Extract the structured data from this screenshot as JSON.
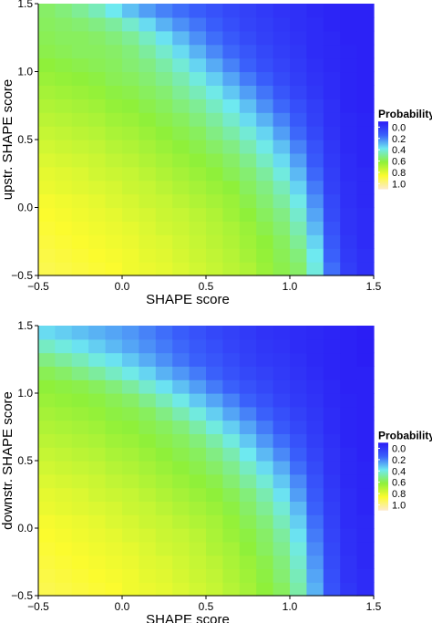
{
  "colors": {
    "background": "#ffffff",
    "axis": "#000000",
    "text": "#000000",
    "colorscale": [
      {
        "value": 0.0,
        "color": "#2a1bf5"
      },
      {
        "value": 0.2,
        "color": "#3a60fb"
      },
      {
        "value": 0.4,
        "color": "#6ee9f0"
      },
      {
        "value": 0.6,
        "color": "#8ff03a"
      },
      {
        "value": 0.8,
        "color": "#fbfb2e"
      },
      {
        "value": 1.0,
        "color": "#fdebcf"
      }
    ]
  },
  "chart_data": [
    {
      "type": "heatmap",
      "xlabel": "SHAPE score",
      "ylabel": "upstr. SHAPE score",
      "xlim": [
        -0.5,
        1.5
      ],
      "ylim": [
        -0.5,
        1.5
      ],
      "xticks": [
        -0.5,
        0.0,
        0.5,
        1.0,
        1.5
      ],
      "xtick_labels": [
        "−0.5",
        "0.0",
        "0.5",
        "1.0",
        "1.5"
      ],
      "yticks": [
        -0.5,
        0.0,
        0.5,
        1.0,
        1.5
      ],
      "ytick_labels": [
        "−0.5",
        "0.0",
        "0.5",
        "1.0",
        "1.5"
      ],
      "grid": false,
      "n_cells": 20,
      "legend": {
        "title": "Probability",
        "labels": [
          "0.0",
          "0.2",
          "0.4",
          "0.6",
          "0.8",
          "1.0"
        ],
        "placement": "right"
      },
      "z": [
        [
          0.84,
          0.83,
          0.82,
          0.81,
          0.8,
          0.78,
          0.77,
          0.76,
          0.74,
          0.72,
          0.7,
          0.68,
          0.66,
          0.62,
          0.58,
          0.55,
          0.42,
          0.22,
          0.1,
          0.06
        ],
        [
          0.83,
          0.82,
          0.81,
          0.8,
          0.79,
          0.78,
          0.76,
          0.75,
          0.73,
          0.71,
          0.69,
          0.67,
          0.64,
          0.61,
          0.57,
          0.53,
          0.4,
          0.2,
          0.09,
          0.06
        ],
        [
          0.82,
          0.81,
          0.8,
          0.79,
          0.78,
          0.77,
          0.75,
          0.74,
          0.72,
          0.7,
          0.68,
          0.66,
          0.63,
          0.6,
          0.56,
          0.5,
          0.37,
          0.18,
          0.08,
          0.05
        ],
        [
          0.81,
          0.8,
          0.79,
          0.78,
          0.77,
          0.76,
          0.74,
          0.72,
          0.71,
          0.69,
          0.67,
          0.65,
          0.62,
          0.58,
          0.54,
          0.47,
          0.33,
          0.16,
          0.07,
          0.05
        ],
        [
          0.8,
          0.79,
          0.78,
          0.77,
          0.76,
          0.74,
          0.73,
          0.71,
          0.7,
          0.68,
          0.66,
          0.63,
          0.6,
          0.56,
          0.52,
          0.44,
          0.3,
          0.14,
          0.07,
          0.05
        ],
        [
          0.79,
          0.78,
          0.77,
          0.76,
          0.74,
          0.73,
          0.71,
          0.7,
          0.68,
          0.66,
          0.64,
          0.62,
          0.58,
          0.54,
          0.49,
          0.41,
          0.27,
          0.13,
          0.06,
          0.04
        ],
        [
          0.77,
          0.76,
          0.75,
          0.74,
          0.73,
          0.71,
          0.7,
          0.68,
          0.66,
          0.64,
          0.62,
          0.6,
          0.56,
          0.52,
          0.46,
          0.37,
          0.24,
          0.11,
          0.06,
          0.04
        ],
        [
          0.76,
          0.75,
          0.74,
          0.72,
          0.71,
          0.7,
          0.68,
          0.66,
          0.64,
          0.62,
          0.6,
          0.57,
          0.54,
          0.49,
          0.42,
          0.33,
          0.21,
          0.1,
          0.05,
          0.04
        ],
        [
          0.74,
          0.73,
          0.72,
          0.71,
          0.69,
          0.68,
          0.66,
          0.64,
          0.62,
          0.6,
          0.58,
          0.55,
          0.51,
          0.45,
          0.38,
          0.29,
          0.18,
          0.09,
          0.05,
          0.03
        ],
        [
          0.72,
          0.71,
          0.7,
          0.69,
          0.67,
          0.66,
          0.64,
          0.62,
          0.6,
          0.58,
          0.55,
          0.52,
          0.47,
          0.41,
          0.34,
          0.25,
          0.16,
          0.08,
          0.04,
          0.03
        ],
        [
          0.7,
          0.69,
          0.68,
          0.67,
          0.65,
          0.64,
          0.62,
          0.6,
          0.58,
          0.56,
          0.52,
          0.48,
          0.43,
          0.37,
          0.29,
          0.21,
          0.13,
          0.07,
          0.04,
          0.03
        ],
        [
          0.68,
          0.67,
          0.66,
          0.65,
          0.63,
          0.62,
          0.6,
          0.58,
          0.56,
          0.53,
          0.49,
          0.44,
          0.38,
          0.32,
          0.25,
          0.18,
          0.11,
          0.06,
          0.04,
          0.03
        ],
        [
          0.66,
          0.65,
          0.64,
          0.63,
          0.61,
          0.6,
          0.58,
          0.56,
          0.53,
          0.5,
          0.45,
          0.4,
          0.34,
          0.27,
          0.21,
          0.15,
          0.1,
          0.06,
          0.03,
          0.02
        ],
        [
          0.64,
          0.63,
          0.62,
          0.61,
          0.59,
          0.58,
          0.56,
          0.54,
          0.5,
          0.46,
          0.41,
          0.35,
          0.29,
          0.23,
          0.17,
          0.12,
          0.08,
          0.05,
          0.03,
          0.02
        ],
        [
          0.62,
          0.61,
          0.6,
          0.59,
          0.57,
          0.56,
          0.54,
          0.51,
          0.47,
          0.42,
          0.36,
          0.3,
          0.24,
          0.19,
          0.14,
          0.1,
          0.07,
          0.05,
          0.03,
          0.02
        ],
        [
          0.6,
          0.59,
          0.58,
          0.57,
          0.56,
          0.54,
          0.52,
          0.48,
          0.43,
          0.37,
          0.31,
          0.25,
          0.2,
          0.15,
          0.12,
          0.09,
          0.06,
          0.04,
          0.03,
          0.02
        ],
        [
          0.58,
          0.57,
          0.56,
          0.56,
          0.55,
          0.53,
          0.49,
          0.44,
          0.38,
          0.32,
          0.26,
          0.21,
          0.17,
          0.13,
          0.1,
          0.08,
          0.05,
          0.04,
          0.03,
          0.02
        ],
        [
          0.57,
          0.56,
          0.56,
          0.55,
          0.53,
          0.5,
          0.45,
          0.39,
          0.33,
          0.27,
          0.22,
          0.18,
          0.14,
          0.11,
          0.09,
          0.07,
          0.05,
          0.04,
          0.02,
          0.02
        ],
        [
          0.56,
          0.55,
          0.54,
          0.52,
          0.49,
          0.44,
          0.38,
          0.32,
          0.27,
          0.23,
          0.19,
          0.15,
          0.12,
          0.1,
          0.08,
          0.06,
          0.05,
          0.03,
          0.02,
          0.02
        ],
        [
          0.55,
          0.53,
          0.5,
          0.46,
          0.4,
          0.34,
          0.29,
          0.25,
          0.22,
          0.19,
          0.16,
          0.13,
          0.11,
          0.09,
          0.07,
          0.06,
          0.04,
          0.03,
          0.02,
          0.02
        ]
      ]
    },
    {
      "type": "heatmap",
      "xlabel": "SHAPE score",
      "ylabel": "downstr. SHAPE score",
      "xlim": [
        -0.5,
        1.5
      ],
      "ylim": [
        -0.5,
        1.5
      ],
      "xticks": [
        -0.5,
        0.0,
        0.5,
        1.0,
        1.5
      ],
      "xtick_labels": [
        "−0.5",
        "0.0",
        "0.5",
        "1.0",
        "1.5"
      ],
      "yticks": [
        -0.5,
        0.0,
        0.5,
        1.0,
        1.5
      ],
      "ytick_labels": [
        "−0.5",
        "0.0",
        "0.5",
        "1.0",
        "1.5"
      ],
      "grid": false,
      "n_cells": 20,
      "legend": {
        "title": "Probability",
        "labels": [
          "0.0",
          "0.2",
          "0.4",
          "0.6",
          "0.8",
          "1.0"
        ],
        "placement": "right"
      },
      "z": [
        [
          0.84,
          0.83,
          0.82,
          0.81,
          0.8,
          0.78,
          0.77,
          0.76,
          0.74,
          0.72,
          0.7,
          0.67,
          0.64,
          0.6,
          0.56,
          0.48,
          0.32,
          0.16,
          0.08,
          0.05
        ],
        [
          0.83,
          0.82,
          0.81,
          0.8,
          0.79,
          0.78,
          0.76,
          0.75,
          0.73,
          0.71,
          0.69,
          0.66,
          0.63,
          0.59,
          0.54,
          0.46,
          0.3,
          0.15,
          0.07,
          0.05
        ],
        [
          0.82,
          0.81,
          0.8,
          0.79,
          0.78,
          0.77,
          0.75,
          0.74,
          0.72,
          0.7,
          0.68,
          0.65,
          0.62,
          0.58,
          0.53,
          0.44,
          0.28,
          0.14,
          0.07,
          0.04
        ],
        [
          0.81,
          0.8,
          0.79,
          0.78,
          0.77,
          0.76,
          0.74,
          0.72,
          0.71,
          0.69,
          0.66,
          0.64,
          0.6,
          0.56,
          0.51,
          0.42,
          0.26,
          0.13,
          0.06,
          0.04
        ],
        [
          0.8,
          0.79,
          0.78,
          0.77,
          0.76,
          0.74,
          0.73,
          0.71,
          0.7,
          0.68,
          0.65,
          0.62,
          0.59,
          0.55,
          0.49,
          0.39,
          0.24,
          0.12,
          0.06,
          0.04
        ],
        [
          0.79,
          0.78,
          0.77,
          0.76,
          0.74,
          0.73,
          0.71,
          0.7,
          0.68,
          0.66,
          0.64,
          0.61,
          0.57,
          0.53,
          0.46,
          0.36,
          0.22,
          0.11,
          0.05,
          0.04
        ],
        [
          0.77,
          0.76,
          0.75,
          0.74,
          0.73,
          0.71,
          0.7,
          0.68,
          0.66,
          0.64,
          0.62,
          0.59,
          0.55,
          0.5,
          0.43,
          0.33,
          0.2,
          0.1,
          0.05,
          0.03
        ],
        [
          0.76,
          0.75,
          0.74,
          0.72,
          0.71,
          0.7,
          0.68,
          0.66,
          0.64,
          0.62,
          0.6,
          0.57,
          0.53,
          0.47,
          0.39,
          0.29,
          0.18,
          0.09,
          0.05,
          0.03
        ],
        [
          0.74,
          0.73,
          0.72,
          0.71,
          0.69,
          0.68,
          0.66,
          0.64,
          0.62,
          0.6,
          0.58,
          0.54,
          0.49,
          0.43,
          0.35,
          0.26,
          0.16,
          0.08,
          0.04,
          0.03
        ],
        [
          0.72,
          0.71,
          0.7,
          0.69,
          0.67,
          0.66,
          0.64,
          0.62,
          0.6,
          0.58,
          0.55,
          0.51,
          0.45,
          0.38,
          0.31,
          0.22,
          0.14,
          0.07,
          0.04,
          0.03
        ],
        [
          0.7,
          0.69,
          0.68,
          0.67,
          0.65,
          0.64,
          0.62,
          0.6,
          0.58,
          0.56,
          0.52,
          0.47,
          0.4,
          0.33,
          0.26,
          0.19,
          0.12,
          0.07,
          0.04,
          0.02
        ],
        [
          0.68,
          0.67,
          0.66,
          0.65,
          0.63,
          0.62,
          0.6,
          0.58,
          0.56,
          0.53,
          0.48,
          0.42,
          0.35,
          0.28,
          0.22,
          0.16,
          0.1,
          0.06,
          0.03,
          0.02
        ],
        [
          0.66,
          0.65,
          0.64,
          0.63,
          0.61,
          0.6,
          0.58,
          0.56,
          0.53,
          0.48,
          0.42,
          0.36,
          0.3,
          0.24,
          0.18,
          0.13,
          0.09,
          0.05,
          0.03,
          0.02
        ],
        [
          0.64,
          0.63,
          0.62,
          0.61,
          0.59,
          0.58,
          0.56,
          0.52,
          0.47,
          0.42,
          0.36,
          0.3,
          0.25,
          0.2,
          0.15,
          0.11,
          0.08,
          0.05,
          0.03,
          0.02
        ],
        [
          0.62,
          0.61,
          0.6,
          0.59,
          0.57,
          0.55,
          0.51,
          0.46,
          0.41,
          0.35,
          0.3,
          0.25,
          0.2,
          0.16,
          0.12,
          0.09,
          0.07,
          0.04,
          0.03,
          0.02
        ],
        [
          0.6,
          0.59,
          0.58,
          0.56,
          0.53,
          0.49,
          0.44,
          0.39,
          0.34,
          0.29,
          0.24,
          0.2,
          0.16,
          0.13,
          0.1,
          0.08,
          0.06,
          0.04,
          0.02,
          0.02
        ],
        [
          0.57,
          0.55,
          0.52,
          0.49,
          0.45,
          0.41,
          0.37,
          0.32,
          0.28,
          0.24,
          0.2,
          0.16,
          0.13,
          0.11,
          0.09,
          0.07,
          0.05,
          0.03,
          0.02,
          0.02
        ],
        [
          0.52,
          0.49,
          0.46,
          0.42,
          0.39,
          0.35,
          0.31,
          0.27,
          0.23,
          0.2,
          0.17,
          0.14,
          0.11,
          0.09,
          0.08,
          0.06,
          0.04,
          0.03,
          0.02,
          0.01
        ],
        [
          0.45,
          0.42,
          0.39,
          0.36,
          0.33,
          0.3,
          0.27,
          0.24,
          0.21,
          0.18,
          0.15,
          0.12,
          0.1,
          0.08,
          0.07,
          0.05,
          0.04,
          0.03,
          0.02,
          0.01
        ],
        [
          0.38,
          0.36,
          0.34,
          0.32,
          0.3,
          0.28,
          0.25,
          0.22,
          0.19,
          0.16,
          0.13,
          0.11,
          0.09,
          0.07,
          0.06,
          0.05,
          0.04,
          0.03,
          0.02,
          0.01
        ]
      ]
    }
  ]
}
